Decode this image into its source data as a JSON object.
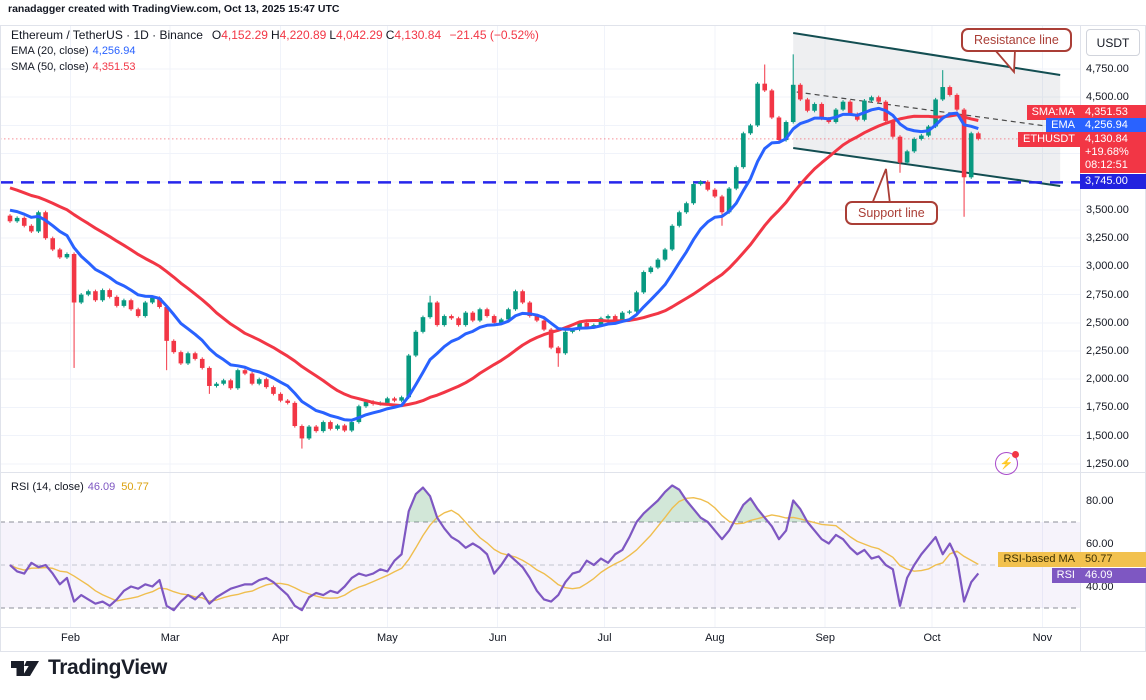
{
  "attribution": "ranadagger created with TradingView.com, Oct 13, 2025 15:47 UTC",
  "header": {
    "symbol": "Ethereum / TetherUS · 1D · Binance",
    "o_label": "O",
    "o": "4,152.29",
    "h_label": "H",
    "h": "4,220.89",
    "l_label": "L",
    "l": "4,042.29",
    "c_label": "C",
    "c": "4,130.84",
    "change": "−21.45 (−0.52%)",
    "ema_label": "EMA (20, close)",
    "ema_value": "4,256.94",
    "sma_label": "SMA (50, close)",
    "sma_value": "4,351.53"
  },
  "rsi_legend": {
    "label": "RSI (14, close)",
    "rsi_value": "46.09",
    "ma_value": "50.77"
  },
  "axis": {
    "currency_button": "USDT",
    "price_ticks": [
      {
        "v": 4750,
        "label": "4,750.00"
      },
      {
        "v": 4500,
        "label": "4,500.00"
      },
      {
        "v": 3500,
        "label": "3,500.00"
      },
      {
        "v": 3250,
        "label": "3,250.00"
      },
      {
        "v": 3000,
        "label": "3,000.00"
      },
      {
        "v": 2750,
        "label": "2,750.00"
      },
      {
        "v": 2500,
        "label": "2,500.00"
      },
      {
        "v": 2250,
        "label": "2,250.00"
      },
      {
        "v": 2000,
        "label": "2,000.00"
      },
      {
        "v": 1750,
        "label": "1,750.00"
      },
      {
        "v": 1500,
        "label": "1,500.00"
      },
      {
        "v": 1250,
        "label": "1,250.00"
      }
    ],
    "rsi_ticks": [
      {
        "v": 80,
        "label": "80.00"
      },
      {
        "v": 60,
        "label": "60.00"
      },
      {
        "v": 40,
        "label": "40.00"
      }
    ],
    "months": [
      {
        "label": "Feb",
        "day": 17
      },
      {
        "label": "Mar",
        "day": 45
      },
      {
        "label": "Apr",
        "day": 76
      },
      {
        "label": "May",
        "day": 106
      },
      {
        "label": "Jun",
        "day": 137
      },
      {
        "label": "Jul",
        "day": 167
      },
      {
        "label": "Aug",
        "day": 198
      },
      {
        "label": "Sep",
        "day": 229
      },
      {
        "label": "Oct",
        "day": 259
      },
      {
        "label": "Nov",
        "day": 290
      }
    ]
  },
  "price_labels": {
    "sma_tag": "SMA:MA",
    "sma": "4,351.53",
    "ema_tag": "EMA",
    "ema": "4,256.94",
    "symbol_tag": "ETHUSDT",
    "last": "4,130.84",
    "change_pct": "+19.68%",
    "countdown": "08:12:51",
    "support": "3,745.00"
  },
  "rsi_labels": {
    "ma_tag": "RSI-based MA",
    "ma": "50.77",
    "rsi_tag": "RSI",
    "rsi": "46.09"
  },
  "annotations": {
    "resistance": "Resistance line",
    "support": "Support line"
  },
  "footer": {
    "brand": "TradingView"
  },
  "colors": {
    "up": "#089981",
    "down": "#F23645",
    "ema": "#2962FF",
    "sma": "#F23645",
    "support_line": "#2626EB",
    "channel": "#134E52",
    "rsi": "#7E57C2",
    "rsi_ma": "#EFBE4E",
    "grid": "#F0F3FA",
    "frame": "#E0E3EB",
    "text": "#131722",
    "callout": "#AA3E36"
  },
  "chart_data": {
    "type": "candlestick",
    "title": "Ethereum / TetherUS · 1D · Binance",
    "ylabel": "USDT",
    "price_axis": {
      "min": 1250,
      "max": 4750,
      "step": 250
    },
    "step_days": 2,
    "closes": [
      3400,
      3430,
      3360,
      3310,
      3480,
      3250,
      3150,
      3080,
      3110,
      2680,
      2750,
      2780,
      2700,
      2790,
      2730,
      2650,
      2700,
      2620,
      2560,
      2680,
      2720,
      2640,
      2340,
      2240,
      2140,
      2230,
      2180,
      2100,
      1940,
      1960,
      1990,
      1920,
      2080,
      2050,
      1960,
      2000,
      1930,
      1870,
      1810,
      1790,
      1585,
      1475,
      1580,
      1540,
      1620,
      1560,
      1590,
      1545,
      1620,
      1760,
      1800,
      1780,
      1790,
      1830,
      1810,
      1840,
      2210,
      2420,
      2550,
      2680,
      2480,
      2560,
      2540,
      2480,
      2590,
      2520,
      2620,
      2560,
      2500,
      2530,
      2620,
      2780,
      2680,
      2560,
      2520,
      2440,
      2280,
      2230,
      2420,
      2440,
      2500,
      2460,
      2480,
      2540,
      2560,
      2520,
      2590,
      2600,
      2770,
      2950,
      2990,
      3060,
      3150,
      3360,
      3480,
      3560,
      3730,
      3750,
      3680,
      3620,
      3480,
      3690,
      3880,
      4180,
      4250,
      4620,
      4560,
      4320,
      4120,
      4280,
      4610,
      4480,
      4380,
      4440,
      4310,
      4280,
      4390,
      4460,
      4350,
      4300,
      4470,
      4500,
      4460,
      4290,
      4150,
      3920,
      4020,
      4130,
      4160,
      4240,
      4480,
      4590,
      4520,
      4390,
      3790,
      4180,
      4130.84
    ],
    "wicks": [
      {
        "i": 9,
        "low": 2100
      },
      {
        "i": 22,
        "low": 2080
      },
      {
        "i": 28,
        "low": 1870
      },
      {
        "i": 41,
        "low": 1385
      },
      {
        "i": 59,
        "high": 2740
      },
      {
        "i": 77,
        "low": 2110
      },
      {
        "i": 100,
        "low": 3360
      },
      {
        "i": 106,
        "high": 4790
      },
      {
        "i": 110,
        "high": 4880
      },
      {
        "i": 125,
        "low": 3830
      },
      {
        "i": 131,
        "high": 4740
      },
      {
        "i": 134,
        "low": 3440
      }
    ],
    "rsi": [
      50,
      47,
      46,
      51,
      49,
      50,
      46,
      41,
      44,
      33,
      36,
      34,
      32,
      33,
      31,
      34,
      38,
      40,
      39,
      41,
      40,
      43,
      31,
      29,
      33,
      36,
      34,
      37,
      32,
      35,
      37,
      39,
      40,
      41,
      41,
      43,
      44,
      42,
      39,
      36,
      31,
      29,
      35,
      37,
      36,
      38,
      37,
      40,
      44,
      46,
      45,
      46,
      48,
      47,
      52,
      55,
      75,
      83,
      86,
      82,
      72,
      67,
      63,
      61,
      58,
      60,
      58,
      55,
      46,
      50,
      55,
      52,
      49,
      44,
      38,
      34,
      33,
      36,
      42,
      46,
      47,
      52,
      50,
      53,
      51,
      55,
      57,
      63,
      70,
      74,
      77,
      80,
      84,
      87,
      85,
      80,
      76,
      72,
      70,
      66,
      62,
      66,
      72,
      78,
      81,
      76,
      72,
      68,
      62,
      66,
      80,
      76,
      70,
      66,
      62,
      60,
      64,
      62,
      58,
      55,
      57,
      53,
      54,
      50,
      48,
      31,
      44,
      50,
      55,
      59,
      63,
      55,
      60,
      53,
      33,
      42,
      46.09
    ],
    "rsi_axis": {
      "ticks": [
        80,
        60,
        40
      ],
      "bands": [
        70,
        50,
        30
      ]
    },
    "overlays": {
      "ema_period_days": 20,
      "sma_period_days": 50,
      "support_level": 3745,
      "last_price": 4130.84,
      "channel": {
        "upper": [
          [
            220,
            5069
          ],
          [
            295,
            4697
          ]
        ],
        "lower": [
          [
            220,
            4050
          ],
          [
            295,
            3713
          ]
        ]
      },
      "trend_dashed": [
        [
          221,
          4546
        ],
        [
          295,
          4227
        ]
      ]
    },
    "legend_position": "top-left",
    "grid": true
  }
}
